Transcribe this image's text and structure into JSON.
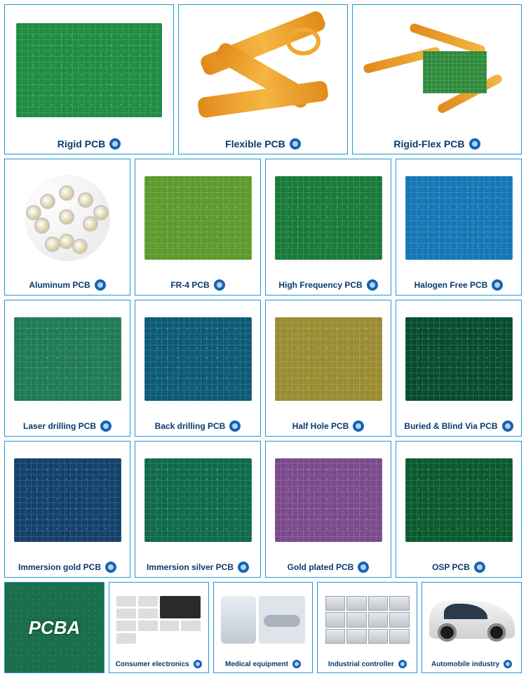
{
  "border_color": "#2196d4",
  "label_color": "#0a3a6b",
  "ring": {
    "outer": "#1363b6",
    "inner": "#b8d0e8"
  },
  "row1": [
    {
      "label": "Rigid PCB",
      "art": "pcb",
      "bg": "#1f8c43"
    },
    {
      "label": "Flexible PCB",
      "art": "flex-pcb"
    },
    {
      "label": "Rigid-Flex PCB",
      "art": "rigidflex"
    }
  ],
  "row2": [
    {
      "label": "Aluminum PCB",
      "art": "alum"
    },
    {
      "label": "FR-4 PCB",
      "art": "pcb",
      "bg": "#5c9a2e"
    },
    {
      "label": "High Frequency PCB",
      "art": "pcb",
      "bg": "#1a7a3a"
    },
    {
      "label": "Halogen Free PCB",
      "art": "pcb",
      "bg": "#1477b5"
    }
  ],
  "row3": [
    {
      "label": "Laser drilling PCB",
      "art": "pcb",
      "bg": "#1f7a55"
    },
    {
      "label": "Back drilling PCB",
      "art": "pcb",
      "bg": "#0d5a76"
    },
    {
      "label": "Half Hole PCB",
      "art": "pcb",
      "bg": "#9a8c32"
    },
    {
      "label": "Buried & Blind Via PCB",
      "art": "pcb",
      "bg": "#064d2f"
    }
  ],
  "row4": [
    {
      "label": "Immersion gold PCB",
      "art": "pcb",
      "bg": "#13416b"
    },
    {
      "label": "Immersion silver PCB",
      "art": "pcb",
      "bg": "#0f6a49"
    },
    {
      "label": "Gold plated PCB",
      "art": "pcb",
      "bg": "#7a4a8c"
    },
    {
      "label": "OSP PCB",
      "art": "pcb",
      "bg": "#0a5a2d"
    }
  ],
  "row5": [
    {
      "label": "PCBA",
      "art": "pcba-head"
    },
    {
      "label": "Consumer electronics",
      "art": "collage"
    },
    {
      "label": "Medical equipment",
      "art": "medical"
    },
    {
      "label": "Industrial controller",
      "art": "industrial"
    },
    {
      "label": "Automobile industry",
      "art": "car"
    }
  ]
}
